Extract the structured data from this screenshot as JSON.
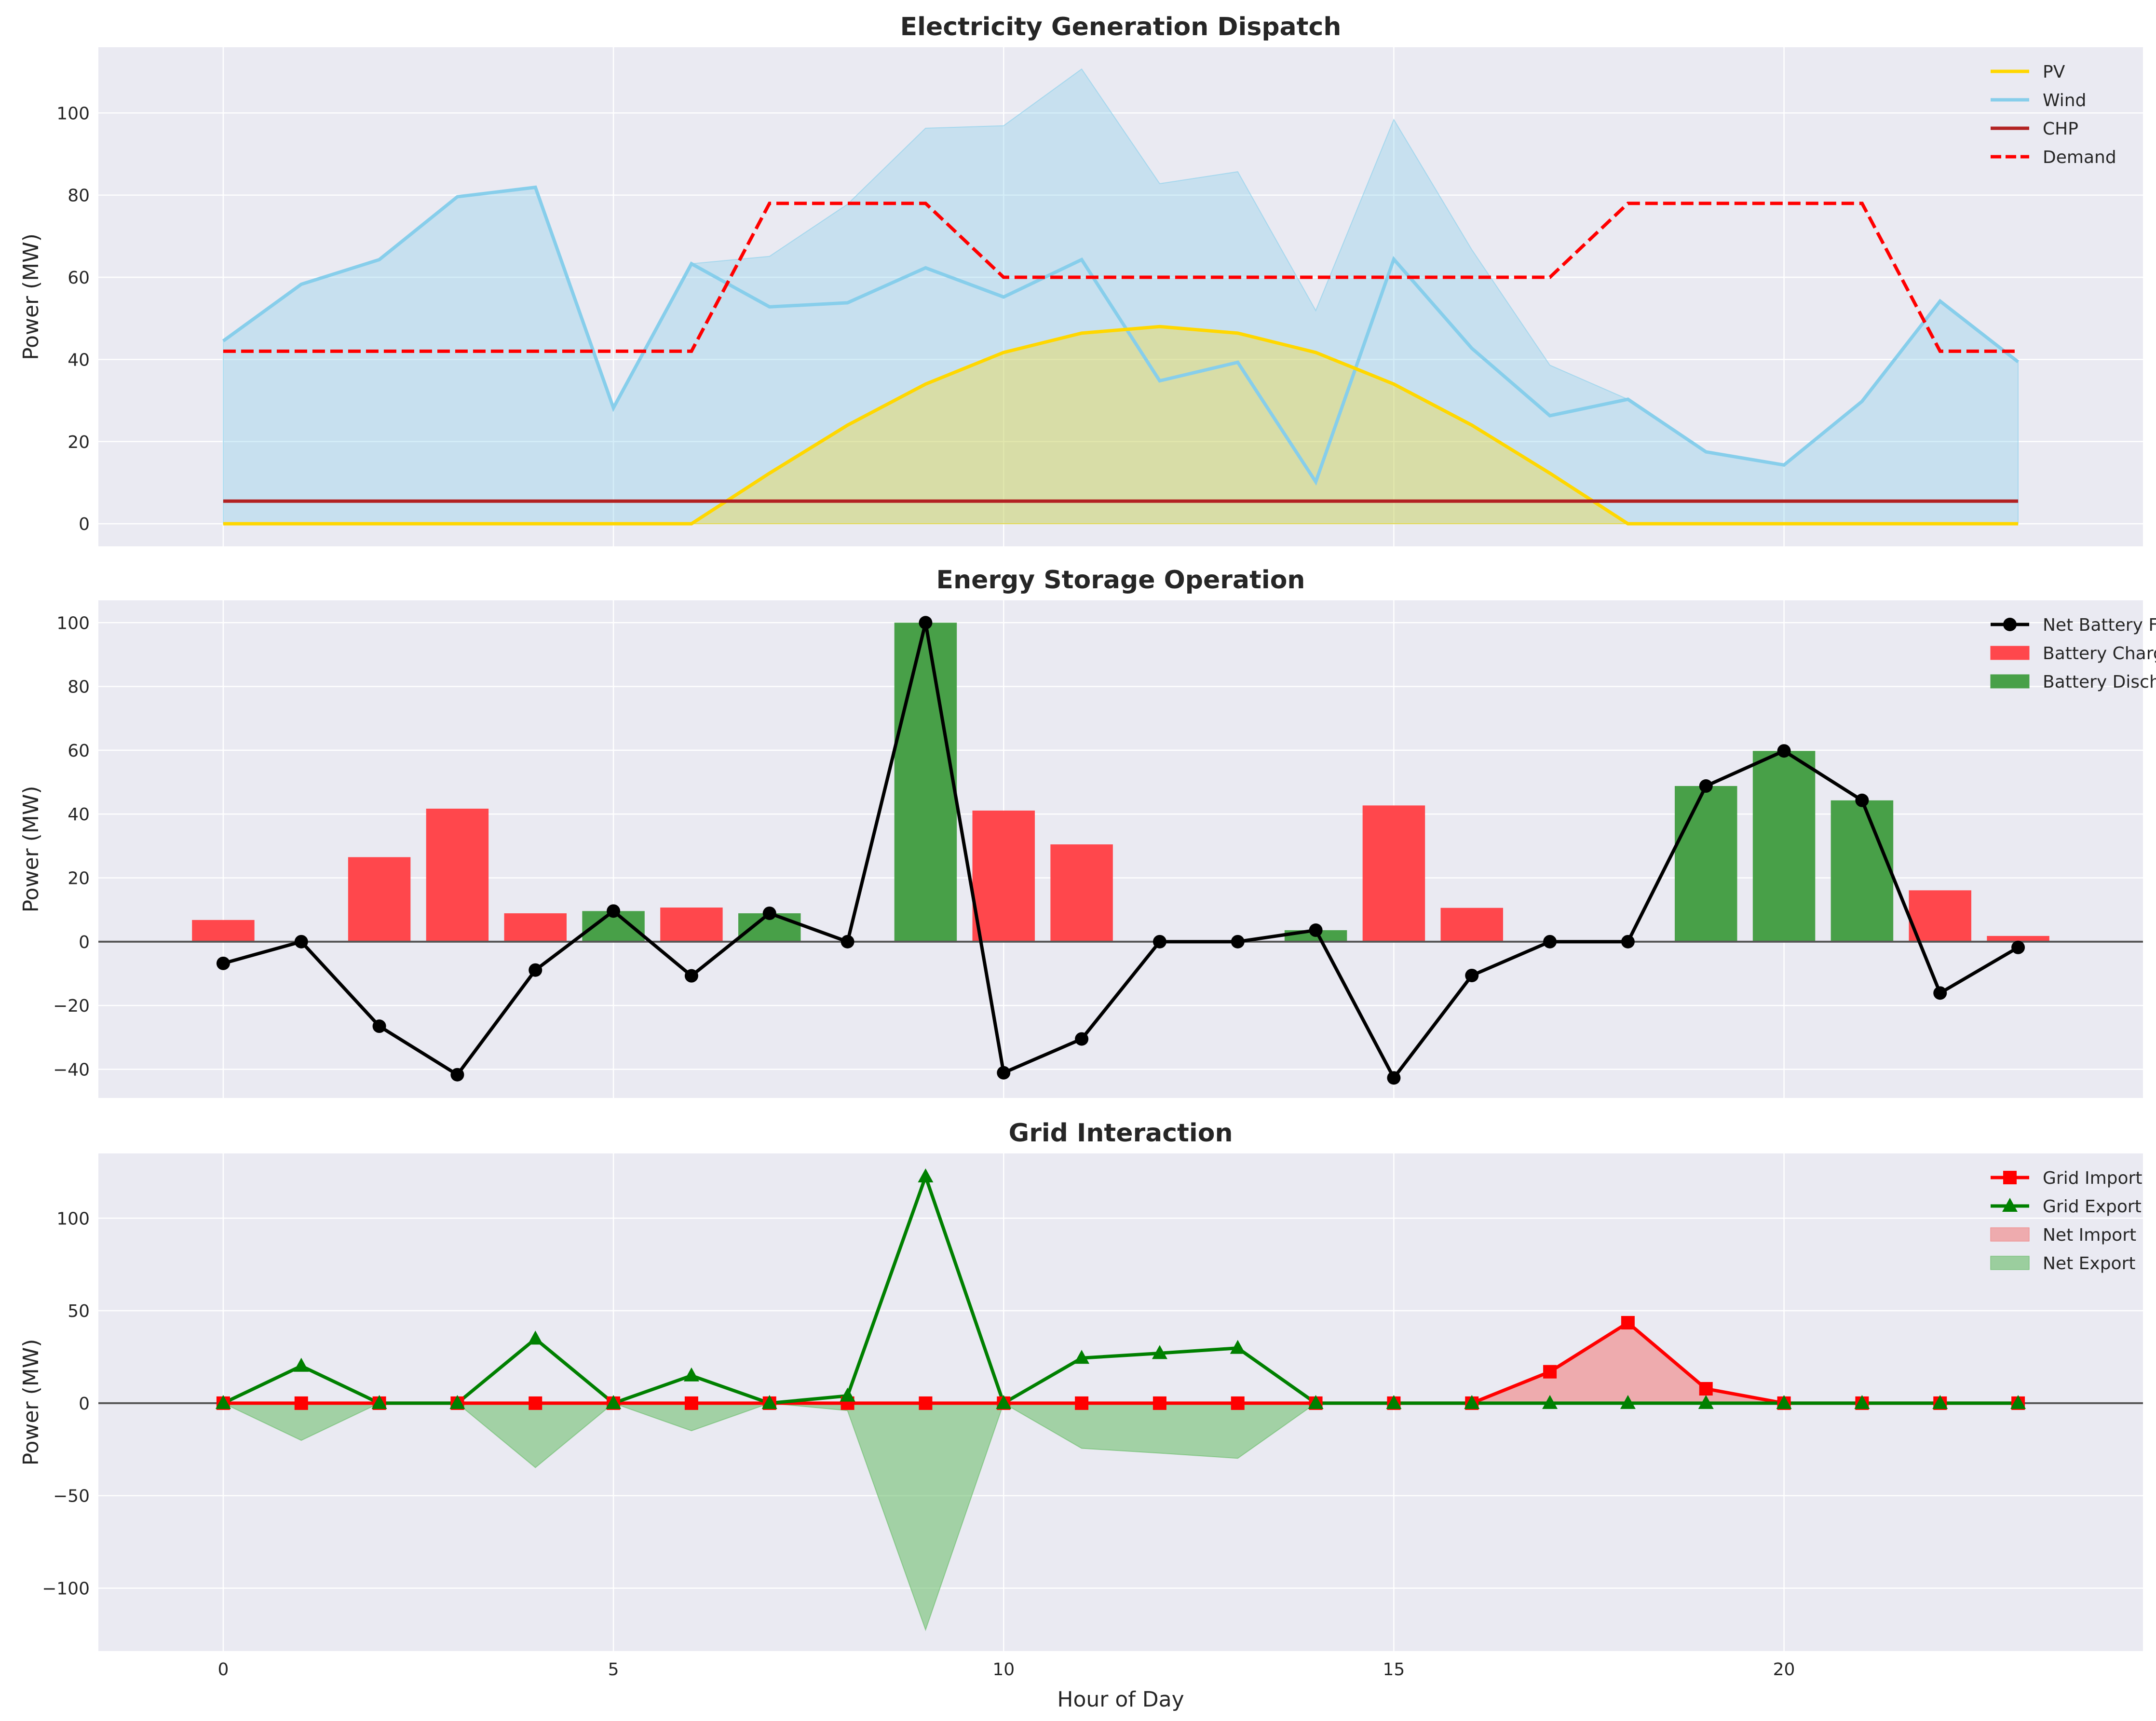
{
  "chart_data": [
    {
      "type": "line",
      "title": "Electricity Generation Dispatch",
      "xlabel": "",
      "ylabel": "Power (MW)",
      "xlim": [
        -1.6,
        24.6
      ],
      "ylim": [
        -5.5,
        116
      ],
      "x_ticks": [
        0,
        5,
        10,
        15,
        20
      ],
      "y_ticks": [
        0,
        20,
        40,
        60,
        80,
        100
      ],
      "show_x_tick_labels": false,
      "grid": true,
      "legend_position": "top-right",
      "x": [
        0,
        1,
        2,
        3,
        4,
        5,
        6,
        7,
        8,
        9,
        10,
        11,
        12,
        13,
        14,
        15,
        16,
        17,
        18,
        19,
        20,
        21,
        22,
        23
      ],
      "series": [
        {
          "name": "PV",
          "style": "line+fill",
          "color": "#FFD700",
          "values": [
            0,
            0,
            0,
            0,
            0,
            0,
            0,
            12.3,
            24.0,
            34.0,
            41.7,
            46.4,
            48.0,
            46.4,
            41.7,
            34.0,
            24.0,
            12.3,
            0,
            0,
            0,
            0,
            0,
            0
          ]
        },
        {
          "name": "Wind",
          "style": "line",
          "color": "#87CEEB",
          "values": [
            44.5,
            58.3,
            64.3,
            79.6,
            81.9,
            28.2,
            63.3,
            52.8,
            53.8,
            62.3,
            55.2,
            64.3,
            34.8,
            39.3,
            10.2,
            64.4,
            42.7,
            26.3,
            30.3,
            17.5,
            14.3,
            29.8,
            54.2,
            39.4
          ]
        },
        {
          "name": "",
          "style": "fill",
          "color": "#87CEEB",
          "values": [
            44.5,
            58.3,
            64.3,
            79.6,
            81.9,
            28.2,
            63.3,
            65.1,
            77.8,
            96.3,
            96.9,
            110.7,
            82.8,
            85.7,
            51.9,
            98.4,
            66.7,
            38.6,
            30.3,
            17.5,
            14.3,
            29.8,
            54.2,
            39.4
          ]
        },
        {
          "name": "CHP",
          "style": "line",
          "color": "#B22222",
          "values": [
            5.5,
            5.5,
            5.5,
            5.5,
            5.5,
            5.5,
            5.5,
            5.5,
            5.5,
            5.5,
            5.5,
            5.5,
            5.5,
            5.5,
            5.5,
            5.5,
            5.5,
            5.5,
            5.5,
            5.5,
            5.5,
            5.5,
            5.5,
            5.5
          ]
        },
        {
          "name": "Demand",
          "style": "dashed",
          "color": "#FF0000",
          "values": [
            42,
            42,
            42,
            42,
            42,
            42,
            42,
            78,
            78,
            78,
            60,
            60,
            60,
            60,
            60,
            60,
            60,
            60,
            78,
            78,
            78,
            78,
            42,
            42
          ]
        }
      ]
    },
    {
      "type": "bar",
      "title": "Energy Storage Operation",
      "xlabel": "",
      "ylabel": "Power (MW)",
      "xlim": [
        -1.6,
        24.6
      ],
      "ylim": [
        -49,
        107
      ],
      "x_ticks": [
        0,
        5,
        10,
        15,
        20
      ],
      "y_ticks": [
        -40,
        -20,
        0,
        20,
        40,
        60,
        80,
        100
      ],
      "show_x_tick_labels": false,
      "grid": true,
      "legend_position": "top-right",
      "x": [
        0,
        1,
        2,
        3,
        4,
        5,
        6,
        7,
        8,
        9,
        10,
        11,
        12,
        13,
        14,
        15,
        16,
        17,
        18,
        19,
        20,
        21,
        22,
        23
      ],
      "series": [
        {
          "name": "Net Battery Flow",
          "style": "line-marker-circle",
          "color": "#000000",
          "values": [
            -6.8,
            0,
            -26.5,
            -41.7,
            -8.9,
            9.6,
            -10.7,
            8.9,
            0,
            100.0,
            -41.1,
            -30.5,
            0,
            0,
            3.6,
            -42.7,
            -10.6,
            0,
            0,
            48.8,
            59.8,
            44.3,
            -16.1,
            -1.8
          ]
        },
        {
          "name": "Battery Charging",
          "style": "bar",
          "color": "#FF474C",
          "values": [
            6.8,
            0,
            26.5,
            41.7,
            8.9,
            0,
            10.7,
            0,
            0,
            0,
            41.1,
            30.5,
            0,
            0,
            0,
            42.7,
            10.6,
            0,
            0,
            0,
            0,
            0,
            16.1,
            1.8
          ]
        },
        {
          "name": "Battery Discharging",
          "style": "bar",
          "color": "#48A048",
          "values": [
            0,
            0,
            0,
            0,
            0,
            9.6,
            0,
            8.9,
            0,
            100.0,
            0,
            0,
            0,
            0,
            3.6,
            0,
            0,
            0,
            0,
            48.8,
            59.8,
            44.3,
            0,
            0
          ]
        }
      ]
    },
    {
      "type": "line",
      "title": "Grid Interaction",
      "xlabel": "Hour of Day",
      "ylabel": "Power (MW)",
      "xlim": [
        -1.6,
        24.6
      ],
      "ylim": [
        -134,
        135
      ],
      "x_ticks": [
        0,
        5,
        10,
        15,
        20
      ],
      "y_ticks": [
        -100,
        -50,
        0,
        50,
        100
      ],
      "show_x_tick_labels": true,
      "grid": true,
      "legend_position": "top-right",
      "x": [
        0,
        1,
        2,
        3,
        4,
        5,
        6,
        7,
        8,
        9,
        10,
        11,
        12,
        13,
        14,
        15,
        16,
        17,
        18,
        19,
        20,
        21,
        22,
        23
      ],
      "series": [
        {
          "name": "Grid Import",
          "style": "line-marker-square",
          "color": "#FF0000",
          "values": [
            0,
            0,
            0,
            0,
            0,
            0,
            0,
            0,
            0,
            0,
            0,
            0,
            0,
            0,
            0,
            0,
            0,
            17.0,
            43.5,
            7.8,
            0,
            0,
            0,
            0
          ]
        },
        {
          "name": "Grid Export",
          "style": "line-marker-triangle",
          "color": "#008000",
          "values": [
            0,
            20.1,
            0,
            0,
            34.8,
            0,
            14.9,
            0,
            4.0,
            122.5,
            0,
            24.4,
            27.0,
            29.8,
            0,
            0,
            0,
            0,
            0,
            0,
            0,
            0,
            0,
            0
          ]
        },
        {
          "name": "Net Import",
          "style": "fill",
          "color": "#F08080",
          "values": [
            0,
            0,
            0,
            0,
            0,
            0,
            0,
            0,
            0,
            0,
            0,
            0,
            0,
            0,
            0,
            0,
            0,
            17.0,
            43.5,
            7.8,
            0,
            0,
            0,
            0
          ]
        },
        {
          "name": "Net Export",
          "style": "fill",
          "color": "#66BB66",
          "values": [
            0,
            -20.1,
            0,
            0,
            -34.8,
            0,
            -14.9,
            0,
            -4.0,
            -122.5,
            0,
            -24.4,
            -27.0,
            -29.8,
            0,
            0,
            0,
            0,
            0,
            0,
            0,
            0,
            0,
            0
          ]
        }
      ]
    }
  ]
}
